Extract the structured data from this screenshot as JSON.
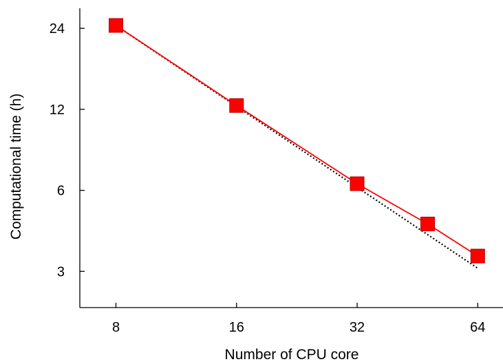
{
  "chart_data": {
    "type": "line",
    "xlabel": "Number of CPU core",
    "ylabel": "Computational time (h)",
    "x_scale": "log",
    "y_scale": "log",
    "xlim": [
      6.5,
      74
    ],
    "ylim": [
      2.2,
      28.5
    ],
    "x_ticks": [
      8,
      16,
      32,
      64
    ],
    "y_ticks": [
      3,
      6,
      12,
      24
    ],
    "grid": false,
    "legend": "none",
    "series": [
      {
        "x": [
          8,
          16,
          32,
          48,
          64
        ],
        "y": [
          24.6,
          12.4,
          6.35,
          4.5,
          3.42
        ],
        "color": "#ff0000",
        "marker": "square",
        "line_style": "solid"
      },
      {
        "x": [
          8,
          64
        ],
        "y": [
          24.6,
          3.08
        ],
        "color": "#000000",
        "marker": "none",
        "line_style": "dotted"
      }
    ]
  }
}
